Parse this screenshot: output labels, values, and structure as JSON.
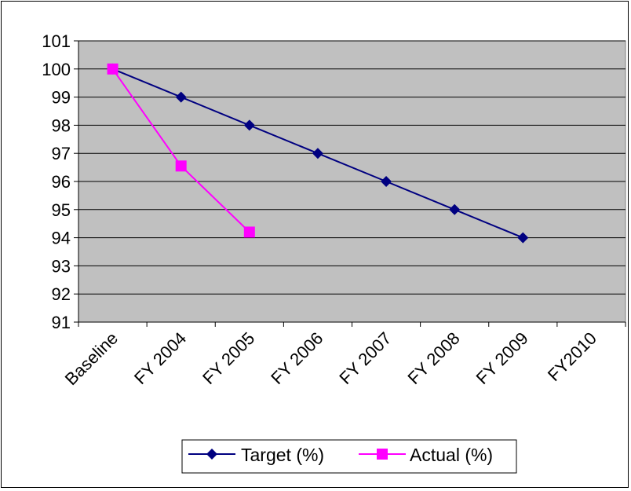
{
  "chart_data": {
    "type": "line",
    "title": "",
    "xlabel": "",
    "ylabel": "",
    "categories": [
      "Baseline",
      "FY 2004",
      "FY 2005",
      "FY 2006",
      "FY 2007",
      "FY 2008",
      "FY 2009",
      "FY2010"
    ],
    "ylim": [
      91,
      101
    ],
    "yticks": [
      91,
      92,
      93,
      94,
      95,
      96,
      97,
      98,
      99,
      100,
      101
    ],
    "grid": "horizontal",
    "legend_position": "bottom",
    "plot_background": "#C0C0C0",
    "series": [
      {
        "name": "Target (%)",
        "color": "#000080",
        "marker": "diamond",
        "values": [
          100,
          99,
          98,
          97,
          96,
          95,
          94,
          null
        ]
      },
      {
        "name": "Actual (%)",
        "color": "#FF00FF",
        "marker": "square",
        "values": [
          100,
          96.55,
          94.2,
          null,
          null,
          null,
          null,
          null
        ]
      }
    ]
  }
}
